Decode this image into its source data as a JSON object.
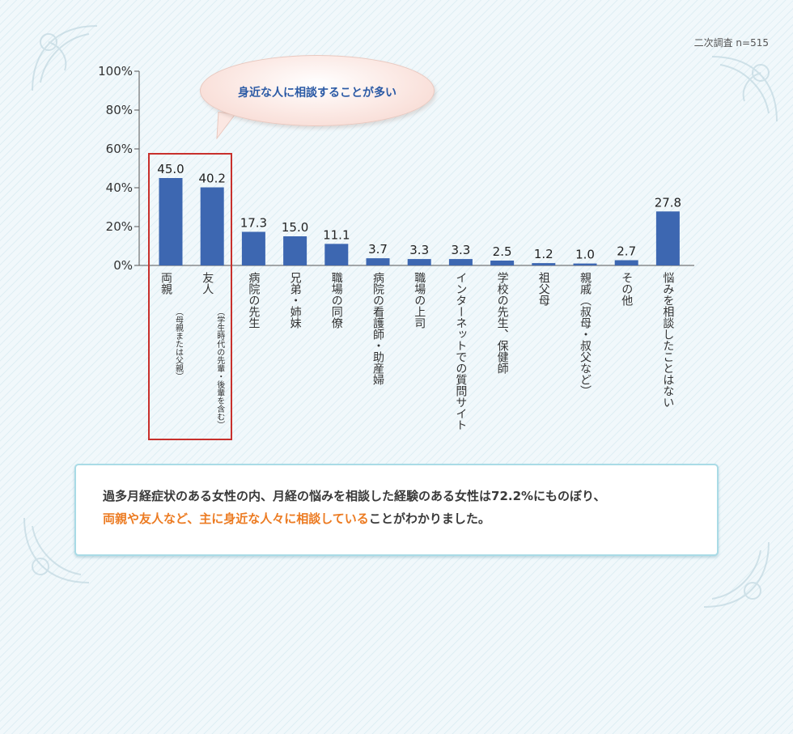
{
  "survey_note": "二次調査 n=515",
  "bubble": {
    "text": "身近な人に相談することが多い"
  },
  "summary": {
    "line1": "過多月経症状のある女性の内、月経の悩みを相談した経験のある女性は72.2%にものぼり、",
    "line2_highlight": "両親や友人など、主に身近な人々に相談している",
    "line2_rest": "ことがわかりました。"
  },
  "colors": {
    "bar": "#3d67b1",
    "highlight_box": "#c8302c",
    "summary_highlight": "#ec7b22",
    "bubble_text": "#2b5aa5"
  },
  "chart_data": {
    "type": "bar",
    "ylim": [
      0,
      100
    ],
    "y_ticks": [
      "0%",
      "20%",
      "40%",
      "60%",
      "80%",
      "100%"
    ],
    "y_tick_values": [
      0,
      20,
      40,
      60,
      80,
      100
    ],
    "categories": [
      {
        "label": "両親",
        "sub": "（母親または父親）"
      },
      {
        "label": "友人",
        "sub": "（学生時代の先輩・後輩を含む）"
      },
      {
        "label": "病院の先生",
        "sub": ""
      },
      {
        "label": "兄弟・姉妹",
        "sub": ""
      },
      {
        "label": "職場の同僚",
        "sub": ""
      },
      {
        "label": "病院の看護師・助産婦",
        "sub": ""
      },
      {
        "label": "職場の上司",
        "sub": ""
      },
      {
        "label": "インターネットでの質問サイト",
        "sub": ""
      },
      {
        "label": "学校の先生、保健師",
        "sub": ""
      },
      {
        "label": "祖父母",
        "sub": ""
      },
      {
        "label": "親戚（叔母・叔父など）",
        "sub": ""
      },
      {
        "label": "その他",
        "sub": ""
      },
      {
        "label": "悩みを相談したことはない",
        "sub": ""
      }
    ],
    "values": [
      45.0,
      40.2,
      17.3,
      15.0,
      11.1,
      3.7,
      3.3,
      3.3,
      2.5,
      1.2,
      1.0,
      2.7,
      27.8
    ],
    "value_labels": [
      "45.0",
      "40.2",
      "17.3",
      "15.0",
      "11.1",
      "3.7",
      "3.3",
      "3.3",
      "2.5",
      "1.2",
      "1.0",
      "2.7",
      "27.8"
    ],
    "highlighted_categories": [
      0,
      1
    ],
    "grid": false,
    "legend": "none"
  }
}
